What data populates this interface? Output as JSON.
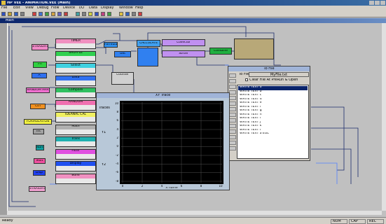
{
  "window": {
    "title": "HP VEE - ANIMATION.VEE (Main)"
  },
  "menu": [
    "File",
    "Edit",
    "View",
    "Debug",
    "Flow",
    "Device",
    "I/O",
    "Data",
    "Display",
    "Window",
    "Help"
  ],
  "main": {
    "title": "Main"
  },
  "blocks": [
    "STRAIGHT",
    "Fn",
    "A",
    "RANDOM ARR",
    "Ctrl",
    "FORMULATION",
    "Int",
    "Num",
    "Mult",
    "Disp",
    "STRAIGHT2",
    "Formula",
    "Get",
    "Counter",
    "CALCULATE",
    "Collector",
    "Sorter",
    "Combine"
  ],
  "column": [
    "TIMER",
    "SHUFFLE",
    "Select",
    "Data",
    "Compare",
    "RANDOM",
    "IDEANAL CAL",
    "Math",
    "Trans",
    "Filter",
    "Display",
    "Build"
  ],
  "to_file": {
    "title": "To File",
    "label": "To File",
    "file": "MyFile.txt",
    "checkbox": "Clear File At PreRun & Open",
    "items": [
      "WRITE TEXT a",
      "WRITE TEXT b",
      "WRITE TEXT c",
      "WRITE TEXT d",
      "WRITE TEXT e",
      "WRITE TEXT f",
      "WRITE TEXT g",
      "WRITE TEXT h",
      "WRITE TEXT i",
      "WRITE TEXT j",
      "WRITE TEXT k",
      "WRITE TEXT l",
      "WRITE TEXT a EOL"
    ]
  },
  "xy_trace": {
    "title": "XY Trace",
    "traces": "Traces",
    "y_labels": [
      "Y1",
      "Y2"
    ],
    "yticks": [
      "10",
      "8",
      "6",
      "4",
      "2",
      "0",
      "-2",
      "-4",
      "-6",
      "-8"
    ],
    "xticks": [
      "0",
      "2",
      "4",
      "6",
      "8",
      "10"
    ],
    "x_label": "X name"
  },
  "status": {
    "text": "Ready",
    "fields": [
      "NUM",
      "CAP",
      "REC"
    ]
  }
}
